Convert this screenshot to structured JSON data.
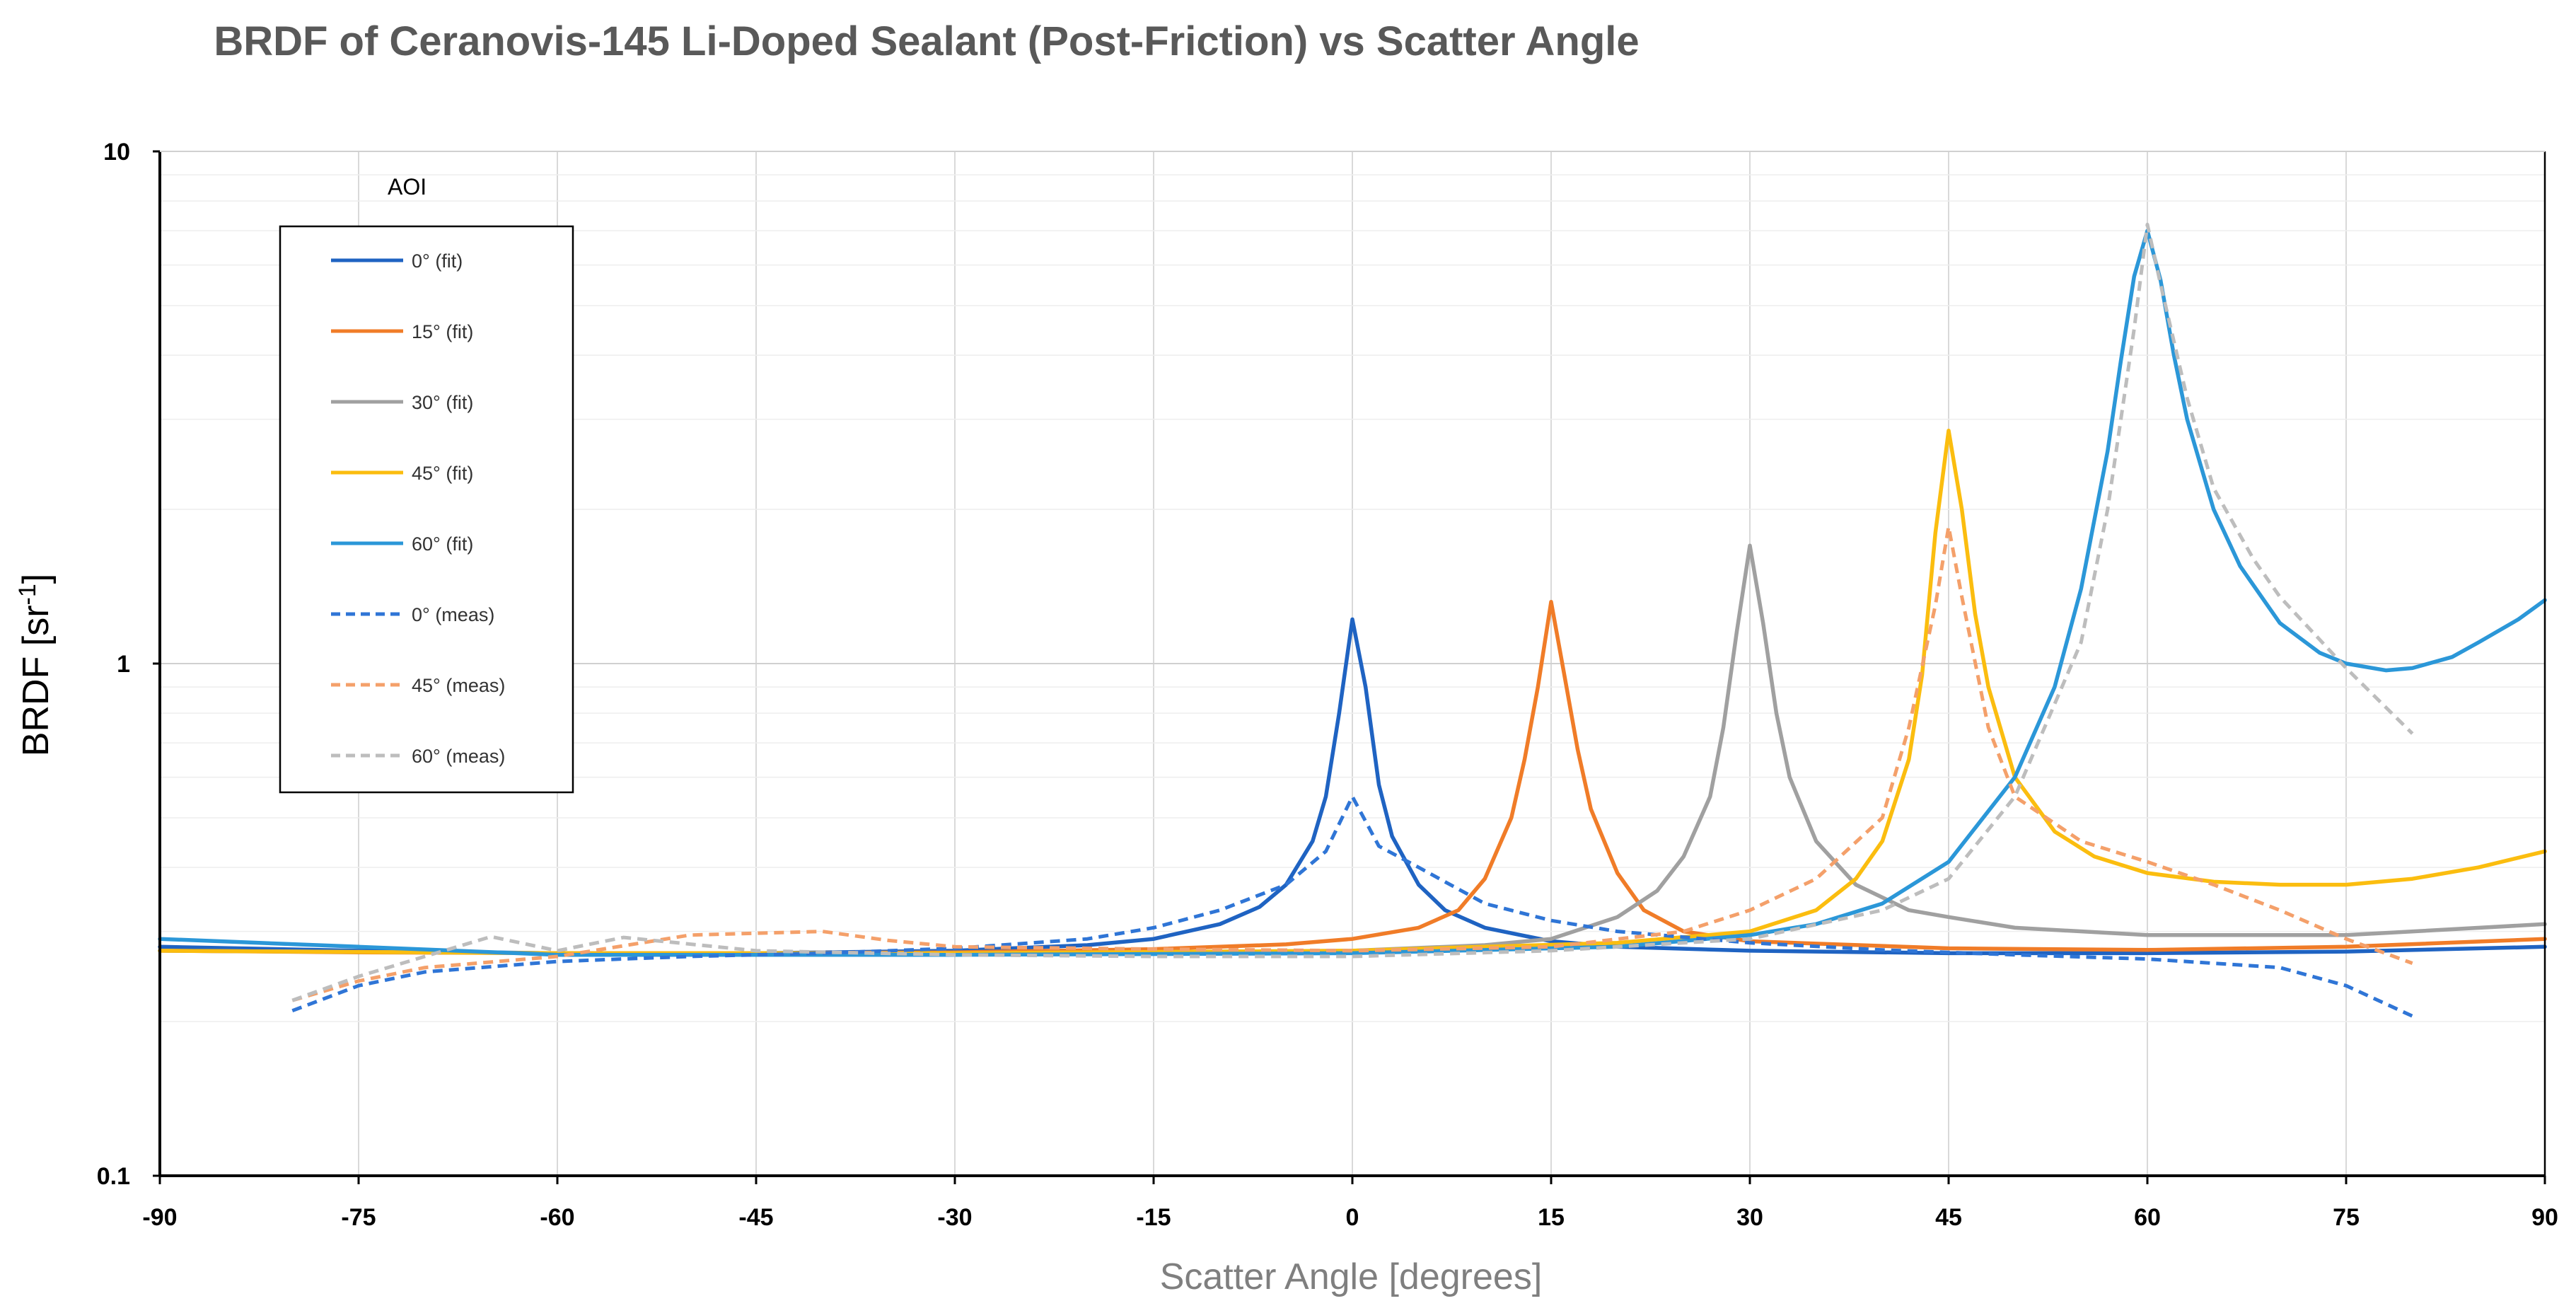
{
  "chart_data": {
    "type": "line",
    "title": "BRDF of Ceranovis-145 Li-Doped Sealant (Post-Friction) vs Scatter Angle",
    "xlabel": "Scatter Angle [degrees]",
    "ylabel_main": "BRDF [sr",
    "ylabel_sup": "-1",
    "ylabel_end": "]",
    "xlim": [
      -90,
      90
    ],
    "ylim": [
      0.1,
      10
    ],
    "yscale": "log",
    "x_ticks": [
      -90,
      -75,
      -60,
      -45,
      -30,
      -15,
      0,
      15,
      30,
      45,
      60,
      75,
      90
    ],
    "x_tick_labels": [
      "-90",
      "-75",
      "-60",
      "-45",
      "-30",
      "-15",
      "0",
      "15",
      "30",
      "45",
      "60",
      "75",
      "90"
    ],
    "y_ticks": [
      0.1,
      1,
      10
    ],
    "y_tick_labels": [
      "0.1",
      "1",
      "10"
    ],
    "grid": true,
    "legend_title": "AOI",
    "legend_position": "top-left",
    "series": [
      {
        "name": "0° (fit)",
        "style": "solid",
        "color": "#1f63c2",
        "x": [
          -90,
          -75,
          -60,
          -45,
          -30,
          -20,
          -15,
          -10,
          -7,
          -5,
          -3,
          -2,
          -1,
          0,
          1,
          2,
          3,
          5,
          7,
          10,
          15,
          20,
          30,
          45,
          60,
          75,
          90
        ],
        "y": [
          0.28,
          0.275,
          0.272,
          0.272,
          0.275,
          0.282,
          0.29,
          0.31,
          0.335,
          0.37,
          0.45,
          0.55,
          0.8,
          1.22,
          0.9,
          0.58,
          0.46,
          0.37,
          0.33,
          0.305,
          0.287,
          0.28,
          0.275,
          0.272,
          0.272,
          0.274,
          0.28
        ]
      },
      {
        "name": "15° (fit)",
        "style": "solid",
        "color": "#f07c28",
        "x": [
          -90,
          -75,
          -60,
          -45,
          -30,
          -15,
          -5,
          0,
          5,
          8,
          10,
          12,
          13,
          14,
          15,
          16,
          17,
          18,
          20,
          22,
          25,
          30,
          45,
          60,
          75,
          90
        ],
        "y": [
          0.275,
          0.273,
          0.272,
          0.272,
          0.273,
          0.277,
          0.283,
          0.29,
          0.305,
          0.33,
          0.38,
          0.5,
          0.65,
          0.9,
          1.32,
          0.95,
          0.68,
          0.52,
          0.39,
          0.33,
          0.3,
          0.287,
          0.278,
          0.276,
          0.28,
          0.29
        ]
      },
      {
        "name": "30° (fit)",
        "style": "solid",
        "color": "#a0a0a0",
        "x": [
          -90,
          -60,
          -30,
          0,
          10,
          15,
          20,
          23,
          25,
          27,
          28,
          29,
          30,
          31,
          32,
          33,
          35,
          38,
          42,
          45,
          50,
          60,
          75,
          90
        ],
        "y": [
          0.275,
          0.272,
          0.272,
          0.275,
          0.282,
          0.29,
          0.32,
          0.36,
          0.42,
          0.55,
          0.75,
          1.15,
          1.7,
          1.2,
          0.8,
          0.6,
          0.45,
          0.37,
          0.33,
          0.32,
          0.305,
          0.295,
          0.295,
          0.31
        ]
      },
      {
        "name": "45° (fit)",
        "style": "solid",
        "color": "#fbbd0f",
        "x": [
          -90,
          -60,
          -30,
          0,
          20,
          30,
          35,
          38,
          40,
          42,
          43,
          44,
          45,
          46,
          47,
          48,
          50,
          53,
          56,
          60,
          65,
          70,
          75,
          80,
          85,
          90
        ],
        "y": [
          0.275,
          0.272,
          0.272,
          0.275,
          0.285,
          0.3,
          0.33,
          0.38,
          0.45,
          0.65,
          0.95,
          1.8,
          2.85,
          2.0,
          1.25,
          0.9,
          0.6,
          0.47,
          0.42,
          0.39,
          0.375,
          0.37,
          0.37,
          0.38,
          0.4,
          0.43
        ]
      },
      {
        "name": "60° (fit)",
        "style": "solid",
        "color": "#2b97d8",
        "x": [
          -90,
          -75,
          -60,
          -30,
          0,
          20,
          30,
          35,
          40,
          45,
          50,
          53,
          55,
          57,
          58,
          59,
          60,
          61,
          62,
          63,
          65,
          67,
          70,
          73,
          75,
          78,
          80,
          83,
          85,
          88,
          90
        ],
        "y": [
          0.29,
          0.28,
          0.27,
          0.27,
          0.272,
          0.28,
          0.295,
          0.31,
          0.34,
          0.41,
          0.6,
          0.9,
          1.4,
          2.6,
          3.9,
          5.7,
          7.0,
          5.6,
          4.0,
          3.0,
          2.0,
          1.55,
          1.2,
          1.05,
          1.0,
          0.97,
          0.98,
          1.03,
          1.1,
          1.22,
          1.33
        ]
      },
      {
        "name": "0° (meas)",
        "style": "dashed",
        "color": "#2f75d6",
        "x": [
          -80,
          -75,
          -70,
          -60,
          -50,
          -40,
          -30,
          -20,
          -15,
          -10,
          -5,
          -2,
          0,
          2,
          5,
          10,
          15,
          20,
          30,
          40,
          50,
          60,
          70,
          75,
          80
        ],
        "y": [
          0.21,
          0.235,
          0.25,
          0.262,
          0.268,
          0.272,
          0.278,
          0.29,
          0.305,
          0.33,
          0.37,
          0.43,
          0.55,
          0.44,
          0.4,
          0.34,
          0.315,
          0.3,
          0.285,
          0.276,
          0.27,
          0.265,
          0.255,
          0.235,
          0.205
        ]
      },
      {
        "name": "45° (meas)",
        "style": "dashed",
        "color": "#f4a06a",
        "x": [
          -80,
          -75,
          -70,
          -60,
          -50,
          -40,
          -35,
          -30,
          -15,
          0,
          15,
          25,
          30,
          35,
          40,
          42,
          44,
          45,
          46,
          48,
          50,
          55,
          60,
          65,
          70,
          75,
          80
        ],
        "y": [
          0.22,
          0.24,
          0.255,
          0.268,
          0.295,
          0.3,
          0.288,
          0.28,
          0.277,
          0.275,
          0.28,
          0.3,
          0.33,
          0.38,
          0.5,
          0.75,
          1.3,
          1.85,
          1.35,
          0.75,
          0.55,
          0.45,
          0.41,
          0.37,
          0.33,
          0.29,
          0.26
        ]
      },
      {
        "name": "60° (meas)",
        "style": "dashed",
        "color": "#bdbdbd",
        "x": [
          -80,
          -75,
          -70,
          -65,
          -60,
          -55,
          -45,
          -30,
          -15,
          0,
          15,
          30,
          40,
          45,
          50,
          55,
          57,
          59,
          60,
          61,
          63,
          65,
          68,
          70,
          75,
          80
        ],
        "y": [
          0.22,
          0.245,
          0.268,
          0.293,
          0.275,
          0.292,
          0.275,
          0.27,
          0.268,
          0.268,
          0.275,
          0.29,
          0.33,
          0.38,
          0.55,
          1.1,
          2.0,
          4.5,
          7.2,
          5.5,
          3.3,
          2.2,
          1.6,
          1.35,
          0.98,
          0.73
        ]
      }
    ]
  }
}
